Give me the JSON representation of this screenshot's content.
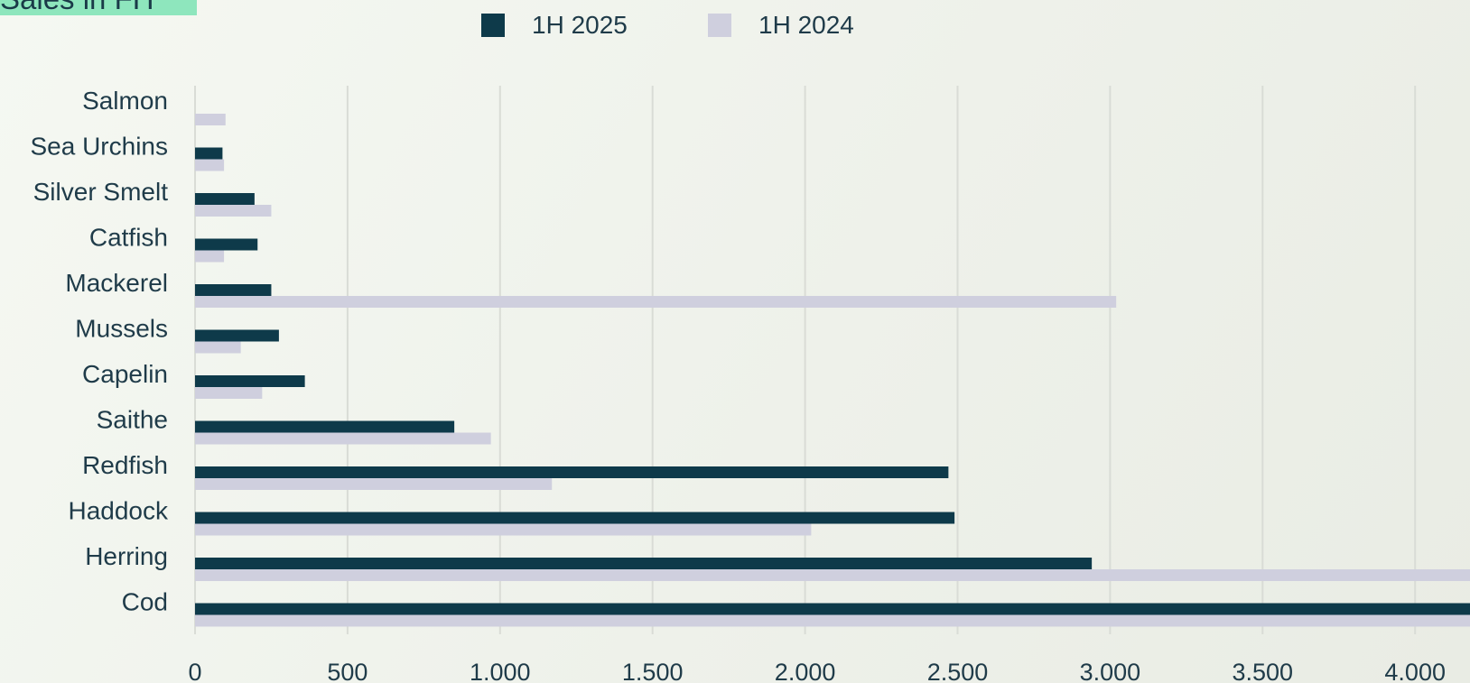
{
  "header": {
    "title_fragment": "Sales in FH"
  },
  "chart_data": {
    "type": "bar",
    "orientation": "horizontal",
    "categories": [
      "Salmon",
      "Sea Urchins",
      "Silver Smelt",
      "Catfish",
      "Mackerel",
      "Mussels",
      "Capelin",
      "Saithe",
      "Redfish",
      "Haddock",
      "Herring",
      "Cod"
    ],
    "series": [
      {
        "name": "1H 2025",
        "color": "#0e3a4a",
        "values": [
          0,
          90,
          195,
          205,
          250,
          275,
          360,
          850,
          2470,
          2490,
          2940,
          4300
        ]
      },
      {
        "name": "1H 2024",
        "color": "#cfcfde",
        "values": [
          100,
          95,
          250,
          95,
          3020,
          150,
          220,
          970,
          1170,
          2020,
          4300,
          4300
        ]
      }
    ],
    "xticks": [
      "0",
      "500",
      "1.000",
      "1.500",
      "2.000",
      "2.500",
      "3.000",
      "3.500",
      "4.000"
    ],
    "xlim": [
      0,
      4200
    ],
    "grid": true,
    "legend_position": "top-center"
  }
}
